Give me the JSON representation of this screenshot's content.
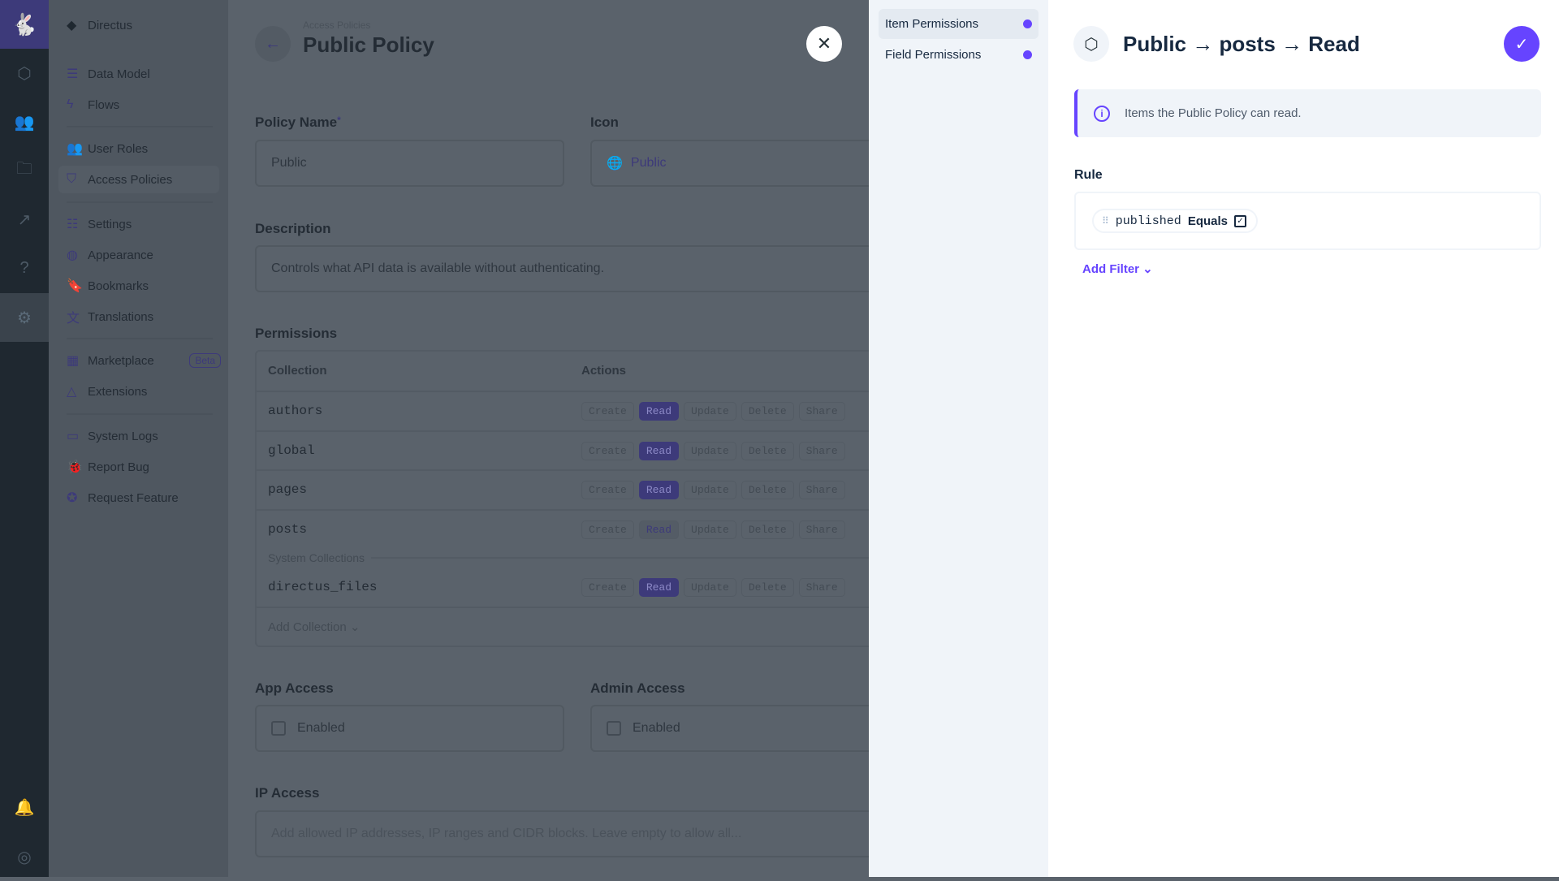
{
  "rail": {
    "icons": [
      "directus-logo-icon",
      "content-icon",
      "users-icon",
      "files-icon",
      "insights-icon",
      "help-icon",
      "settings-icon",
      "notifications-icon",
      "user-avatar-icon"
    ]
  },
  "sidebar": {
    "project": "Directus",
    "items": [
      {
        "label": "Data Model",
        "icon": "database-icon"
      },
      {
        "label": "Flows",
        "icon": "bolt-icon"
      },
      {
        "label": "User Roles",
        "icon": "users-icon"
      },
      {
        "label": "Access Policies",
        "icon": "shield-icon",
        "active": true
      },
      {
        "label": "Settings",
        "icon": "sliders-icon"
      },
      {
        "label": "Appearance",
        "icon": "palette-icon"
      },
      {
        "label": "Bookmarks",
        "icon": "bookmark-icon"
      },
      {
        "label": "Translations",
        "icon": "translate-icon"
      },
      {
        "label": "Marketplace",
        "icon": "store-icon",
        "badge": "Beta"
      },
      {
        "label": "Extensions",
        "icon": "shapes-icon"
      },
      {
        "label": "System Logs",
        "icon": "terminal-icon"
      },
      {
        "label": "Report Bug",
        "icon": "bug-icon"
      },
      {
        "label": "Request Feature",
        "icon": "verified-icon"
      }
    ]
  },
  "header": {
    "breadcrumb": "Access Policies",
    "title": "Public Policy"
  },
  "form": {
    "policy_name": {
      "label": "Policy Name",
      "required": "*",
      "value": "Public"
    },
    "icon": {
      "label": "Icon",
      "value": "Public"
    },
    "description": {
      "label": "Description",
      "value": "Controls what API data is available without authenticating."
    },
    "permissions": {
      "label": "Permissions",
      "col_collection": "Collection",
      "col_actions": "Actions",
      "action_labels": [
        "Create",
        "Read",
        "Update",
        "Delete",
        "Share"
      ],
      "rows": [
        {
          "name": "authors",
          "read": "full"
        },
        {
          "name": "global",
          "read": "full"
        },
        {
          "name": "pages",
          "read": "full"
        },
        {
          "name": "posts",
          "read": "partial"
        }
      ],
      "system_label": "System Collections",
      "system_rows": [
        {
          "name": "directus_files",
          "read": "full"
        }
      ],
      "add_collection": "Add Collection"
    },
    "app_access": {
      "label": "App Access",
      "checkbox": "Enabled",
      "checked": false
    },
    "admin_access": {
      "label": "Admin Access",
      "checkbox": "Enabled",
      "checked": false
    },
    "ip_access": {
      "label": "IP Access",
      "placeholder": "Add allowed IP addresses, IP ranges and CIDR blocks. Leave empty to allow all..."
    }
  },
  "drawer": {
    "nav": [
      {
        "label": "Item Permissions",
        "active": true
      },
      {
        "label": "Field Permissions"
      }
    ],
    "title": "Public → posts → Read",
    "notice": "Items the Public Policy can read.",
    "rule_label": "Rule",
    "filter": {
      "field": "published",
      "operator": "Equals",
      "value_checked": true
    },
    "add_filter": "Add Filter",
    "accent": "#6644ff"
  }
}
